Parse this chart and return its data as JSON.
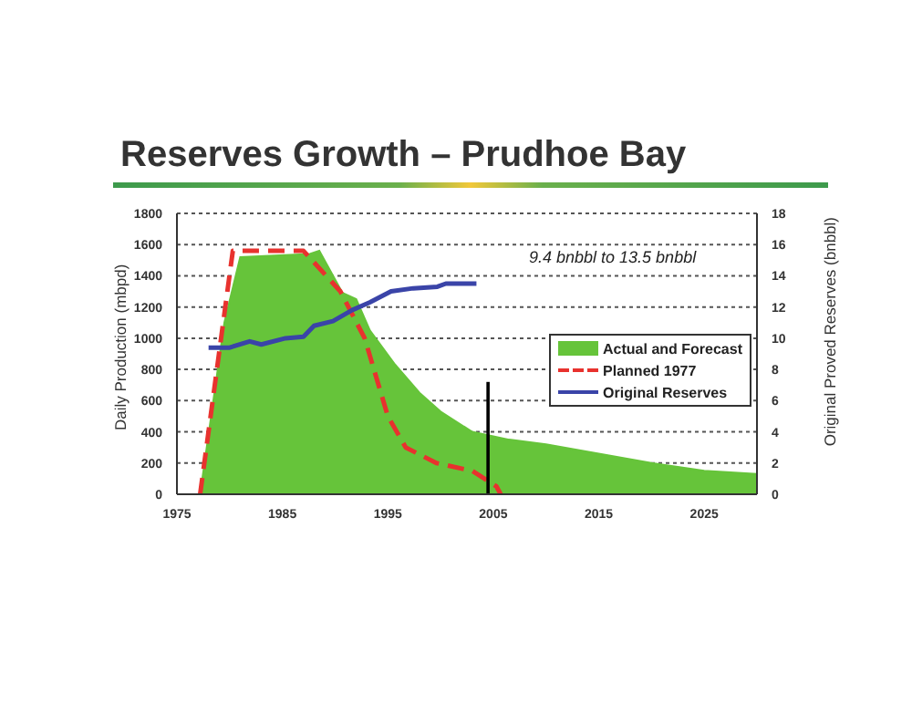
{
  "chart_data": {
    "type": "area",
    "title": "Reserves Growth – Prudhoe Bay",
    "ylabel": "Daily Production (mbpd)",
    "y2label": "Original Proved Reserves (bnbbl)",
    "xlim": [
      1975,
      2030
    ],
    "xticks": [
      1975,
      1985,
      1995,
      2005,
      2015,
      2025
    ],
    "ylim": [
      0,
      1800
    ],
    "yticks": [
      0,
      200,
      400,
      600,
      800,
      1000,
      1200,
      1400,
      1600,
      1800
    ],
    "y2lim": [
      0,
      18
    ],
    "y2ticks": [
      0,
      2,
      4,
      6,
      8,
      10,
      12,
      14,
      16,
      18
    ],
    "grid": "y",
    "legend": "right",
    "annotations": [
      "9.4 bnbbl to 13.5 bnbbl"
    ],
    "series": [
      {
        "name": "Actual and Forecast",
        "color": "#66c43a",
        "x": [
          1977.2,
          1979.5,
          1981,
          1987.6,
          1988.5,
          1990.7,
          1992,
          1993.3,
          1995.7,
          1998,
          2000,
          2003,
          2006.5,
          2010,
          2015,
          2020,
          2025,
          2030
        ],
        "values": [
          0,
          1100,
          1520,
          1540,
          1560,
          1290,
          1250,
          1050,
          830,
          650,
          530,
          400,
          350,
          320,
          260,
          200,
          150,
          130
        ]
      },
      {
        "name": "Planned 1977",
        "type": "line",
        "line_style": "dashed",
        "color": "#e8322e",
        "x": [
          1977.2,
          1980.3,
          1987,
          1990.5,
          1992.8,
          1995,
          1996.7,
          1999.6,
          2003,
          2005.3,
          2005.7
        ],
        "values": [
          0,
          1560,
          1560,
          1300,
          1000,
          500,
          300,
          200,
          150,
          50,
          0
        ]
      },
      {
        "name": "Original Reserves",
        "type": "line",
        "axis": "y2",
        "color": "#3a44a8",
        "x": [
          1978,
          1980,
          1981.9,
          1983,
          1985.3,
          1987,
          1988,
          1989.8,
          1991.6,
          1993.3,
          1995.3,
          1997.4,
          1999.7,
          2000.5,
          2003.4
        ],
        "values": [
          9.4,
          9.4,
          9.8,
          9.6,
          10.0,
          10.1,
          10.8,
          11.1,
          11.8,
          12.3,
          13.0,
          13.2,
          13.3,
          13.5,
          13.5
        ]
      },
      {
        "type": "line",
        "color": "#000000",
        "x": [
          2004.5,
          2004.5
        ],
        "values": [
          0,
          720
        ]
      }
    ]
  }
}
